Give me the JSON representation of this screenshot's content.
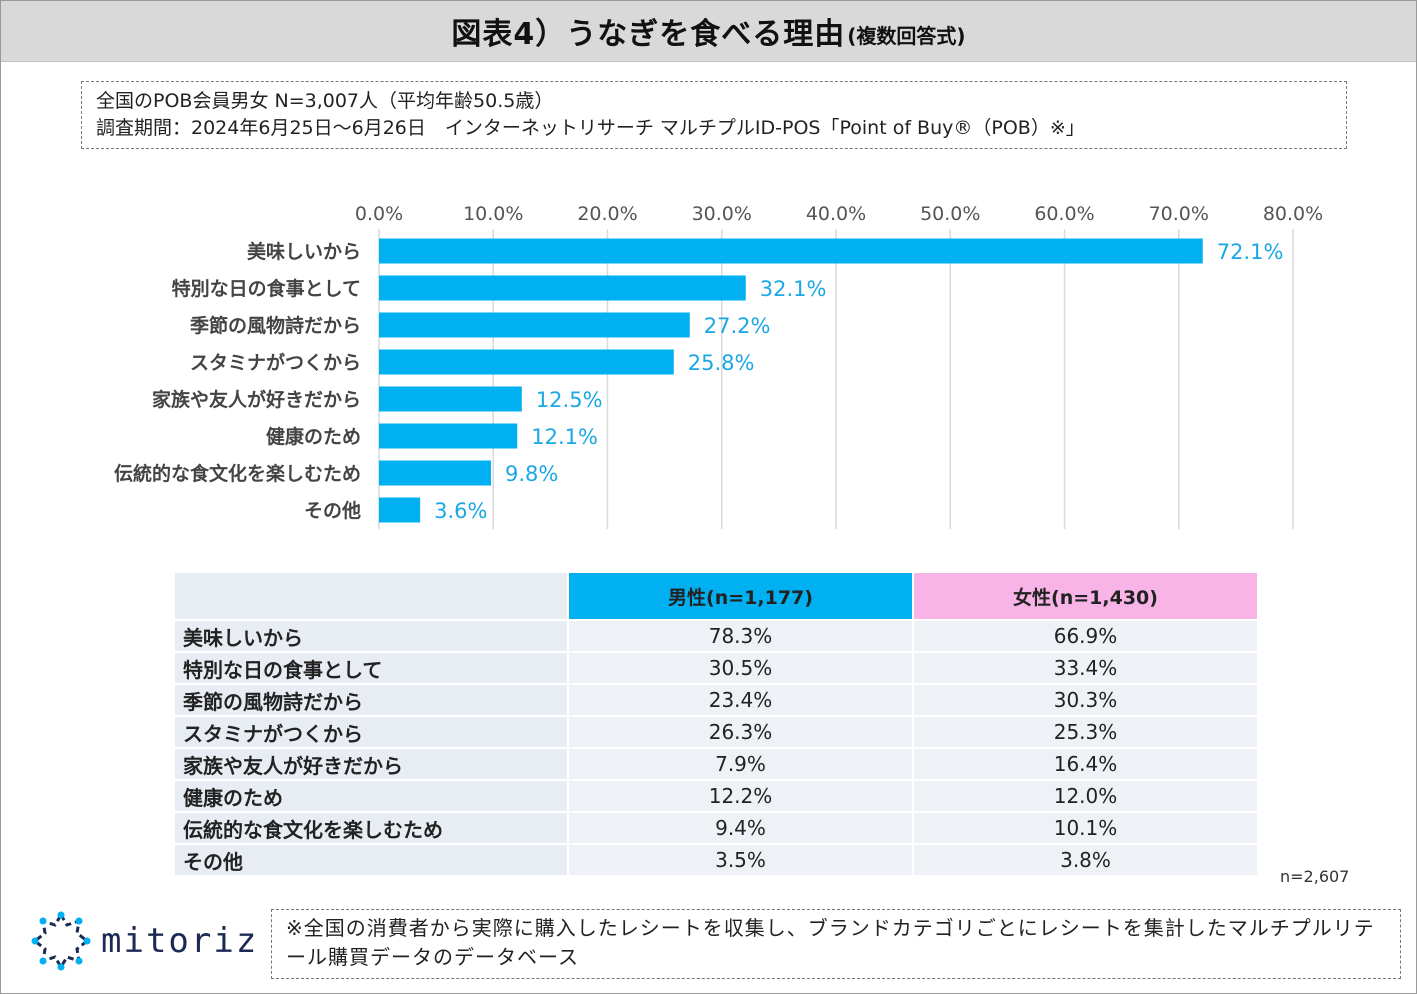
{
  "title": {
    "main": "図表4）うなぎを食べる理由",
    "sub": "(複数回答式)"
  },
  "info": {
    "line1": "全国のPOB会員男女 N=3,007人（平均年齢50.5歳）",
    "line2": "調査期間：2024年6月25日～6月26日　インターネットリサーチ マルチプルID-POS「Point of Buy®（POB）※」"
  },
  "colors": {
    "bar": "#00b0f0",
    "value_text": "#1aa7e6",
    "male_header": "#00b0f0",
    "female_header": "#f8b4e6",
    "grid": "#d9d9d9"
  },
  "chart_data": {
    "type": "bar",
    "orientation": "horizontal",
    "title": "うなぎを食べる理由",
    "categories": [
      "美味しいから",
      "特別な日の食事として",
      "季節の風物詩だから",
      "スタミナがつくから",
      "家族や友人が好きだから",
      "健康のため",
      "伝統的な食文化を楽しむため",
      "その他"
    ],
    "values": [
      72.1,
      32.1,
      27.2,
      25.8,
      12.5,
      12.1,
      9.8,
      3.6
    ],
    "value_labels": [
      "72.1%",
      "32.1%",
      "27.2%",
      "25.8%",
      "12.5%",
      "12.1%",
      "9.8%",
      "3.6%"
    ],
    "xlim": [
      0,
      80
    ],
    "ticks": [
      "0.0%",
      "10.0%",
      "20.0%",
      "30.0%",
      "40.0%",
      "50.0%",
      "60.0%",
      "70.0%",
      "80.0%"
    ],
    "tick_values": [
      0,
      10,
      20,
      30,
      40,
      50,
      60,
      70,
      80
    ],
    "xlabel": "",
    "ylabel": "",
    "grid": true,
    "axis_position": "top"
  },
  "table": {
    "headers": {
      "male": "男性(n=1,177)",
      "female": "女性(n=1,430)"
    },
    "rows": [
      {
        "label": "美味しいから",
        "male": "78.3%",
        "female": "66.9%"
      },
      {
        "label": "特別な日の食事として",
        "male": "30.5%",
        "female": "33.4%"
      },
      {
        "label": "季節の風物詩だから",
        "male": "23.4%",
        "female": "30.3%"
      },
      {
        "label": "スタミナがつくから",
        "male": "26.3%",
        "female": "25.3%"
      },
      {
        "label": "家族や友人が好きだから",
        "male": "7.9%",
        "female": "16.4%"
      },
      {
        "label": "健康のため",
        "male": "12.2%",
        "female": "12.0%"
      },
      {
        "label": "伝統的な食文化を楽しむため",
        "male": "9.4%",
        "female": "10.1%"
      },
      {
        "label": "その他",
        "male": "3.5%",
        "female": "3.8%"
      }
    ]
  },
  "table_n": "n=2,607",
  "logo": {
    "text": "mitoriz",
    "icon": "mitoriz-logo-icon"
  },
  "footnote": "※全国の消費者から実際に購入したレシートを収集し、ブランドカテゴリごとにレシートを集計したマルチプルリテール購買データのデータベース"
}
